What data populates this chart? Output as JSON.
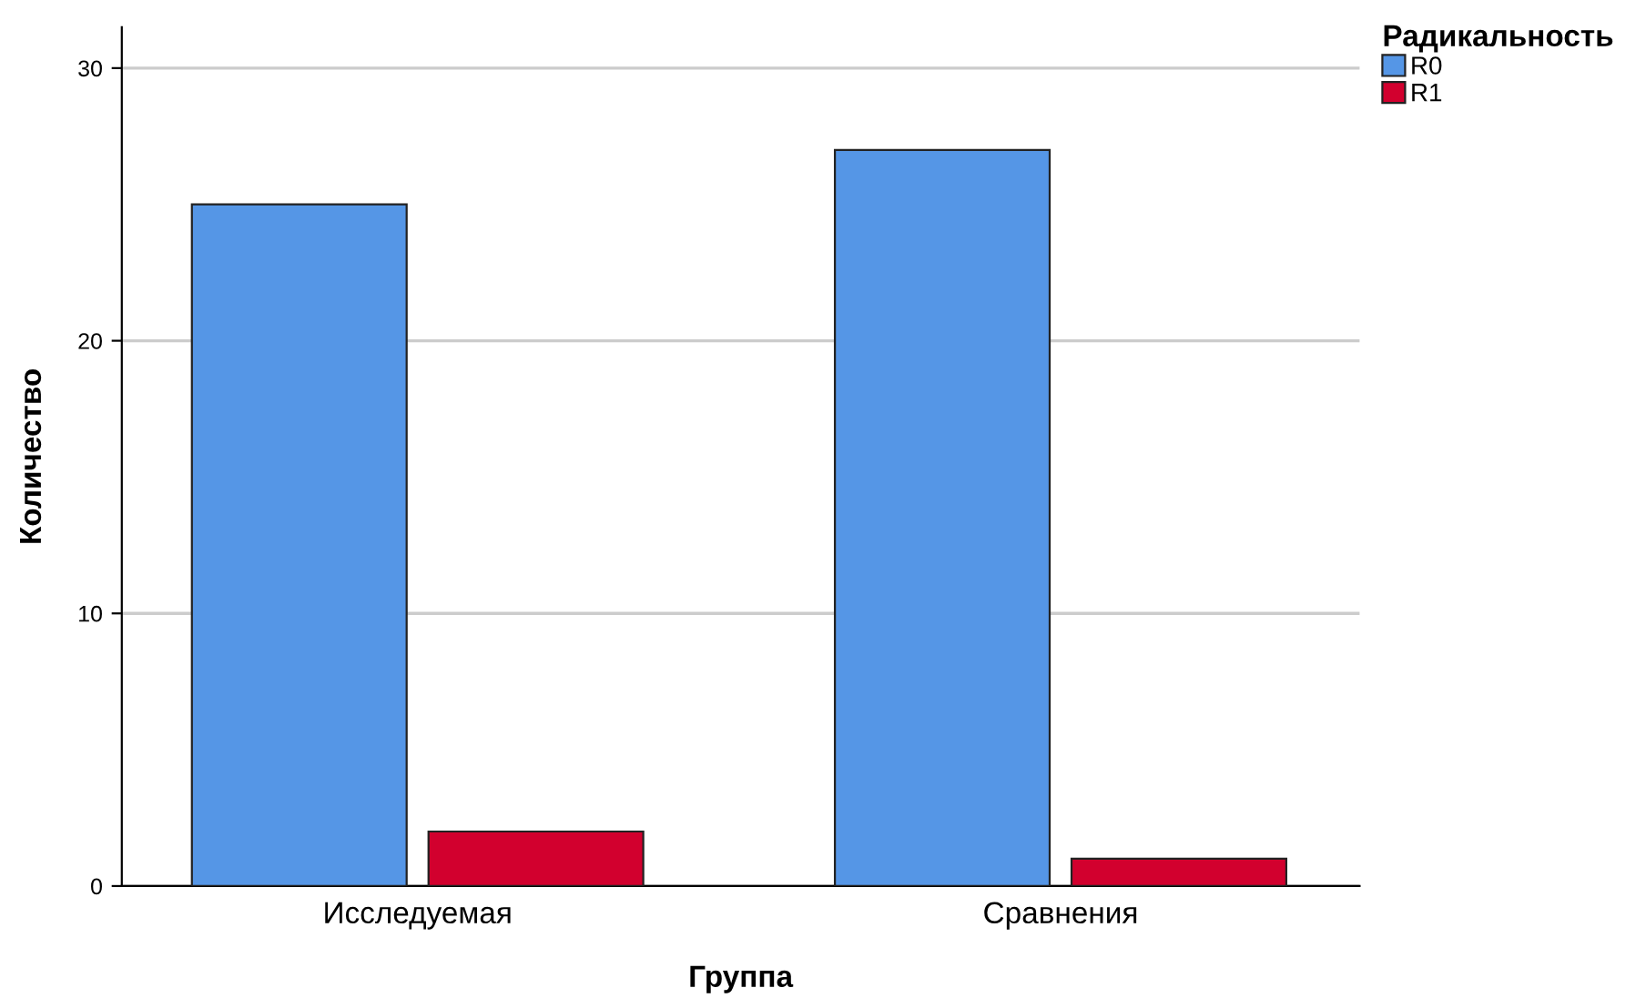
{
  "chart_data": {
    "type": "bar",
    "xlabel": "Группа",
    "ylabel": "Количество",
    "legend_title": "Радикальность",
    "categories": [
      "Исследуемая",
      "Сравнения"
    ],
    "series": [
      {
        "name": "R0",
        "color": "#5596e6",
        "values": [
          25,
          27
        ]
      },
      {
        "name": "R1",
        "color": "#d2002e",
        "values": [
          2,
          1
        ]
      }
    ],
    "ylim": [
      0,
      31.5
    ],
    "yticks": [
      0,
      10,
      20,
      30
    ],
    "grid": "y",
    "legend": "top right"
  }
}
